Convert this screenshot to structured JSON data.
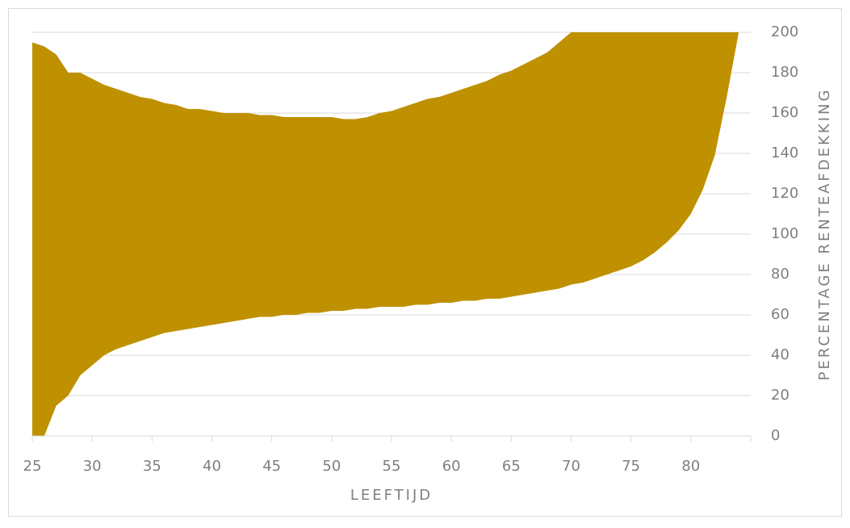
{
  "chart_data": {
    "type": "area-range",
    "x": [
      25,
      26,
      27,
      28,
      29,
      30,
      31,
      32,
      33,
      34,
      35,
      36,
      37,
      38,
      39,
      40,
      41,
      42,
      43,
      44,
      45,
      46,
      47,
      48,
      49,
      50,
      51,
      52,
      53,
      54,
      55,
      56,
      57,
      58,
      59,
      60,
      61,
      62,
      63,
      64,
      65,
      66,
      67,
      68,
      69,
      70,
      71,
      72,
      73,
      74,
      75,
      76,
      77,
      78,
      79,
      80,
      81,
      82,
      83,
      84
    ],
    "series": [
      {
        "color": "#bf9000",
        "values": [
          0,
          0,
          15,
          20,
          30,
          35,
          40,
          43,
          45,
          47,
          49,
          51,
          52,
          53,
          54,
          55,
          56,
          57,
          58,
          59,
          59,
          60,
          60,
          61,
          61,
          62,
          62,
          63,
          63,
          64,
          64,
          64,
          65,
          65,
          66,
          66,
          67,
          67,
          68,
          68,
          69,
          70,
          71,
          72,
          73,
          75,
          76,
          78,
          80,
          82,
          84,
          87,
          91,
          96,
          102,
          110,
          122,
          139,
          168,
          200
        ]
      },
      {
        "color": "#bf9000",
        "values": [
          195,
          193,
          189,
          180,
          180,
          177,
          174,
          172,
          170,
          168,
          167,
          165,
          164,
          162,
          162,
          161,
          160,
          160,
          160,
          159,
          159,
          158,
          158,
          158,
          158,
          158,
          157,
          157,
          158,
          160,
          161,
          163,
          165,
          167,
          168,
          170,
          172,
          174,
          176,
          179,
          181,
          184,
          187,
          190,
          195,
          200,
          200,
          200,
          200,
          200,
          200,
          200,
          200,
          200,
          200,
          200,
          200,
          200,
          200,
          200
        ]
      }
    ],
    "xlabel": "LEEFTIJD",
    "ylabel": "PERCENTAGE RENTEAFDEKKING",
    "xlim": [
      25,
      85
    ],
    "xticks": [
      25,
      30,
      35,
      40,
      45,
      50,
      55,
      60,
      65,
      70,
      75,
      80
    ],
    "ylim": [
      0,
      200
    ],
    "yticks": [
      0,
      20,
      40,
      60,
      80,
      100,
      120,
      140,
      160,
      180,
      200
    ],
    "grid": true
  }
}
